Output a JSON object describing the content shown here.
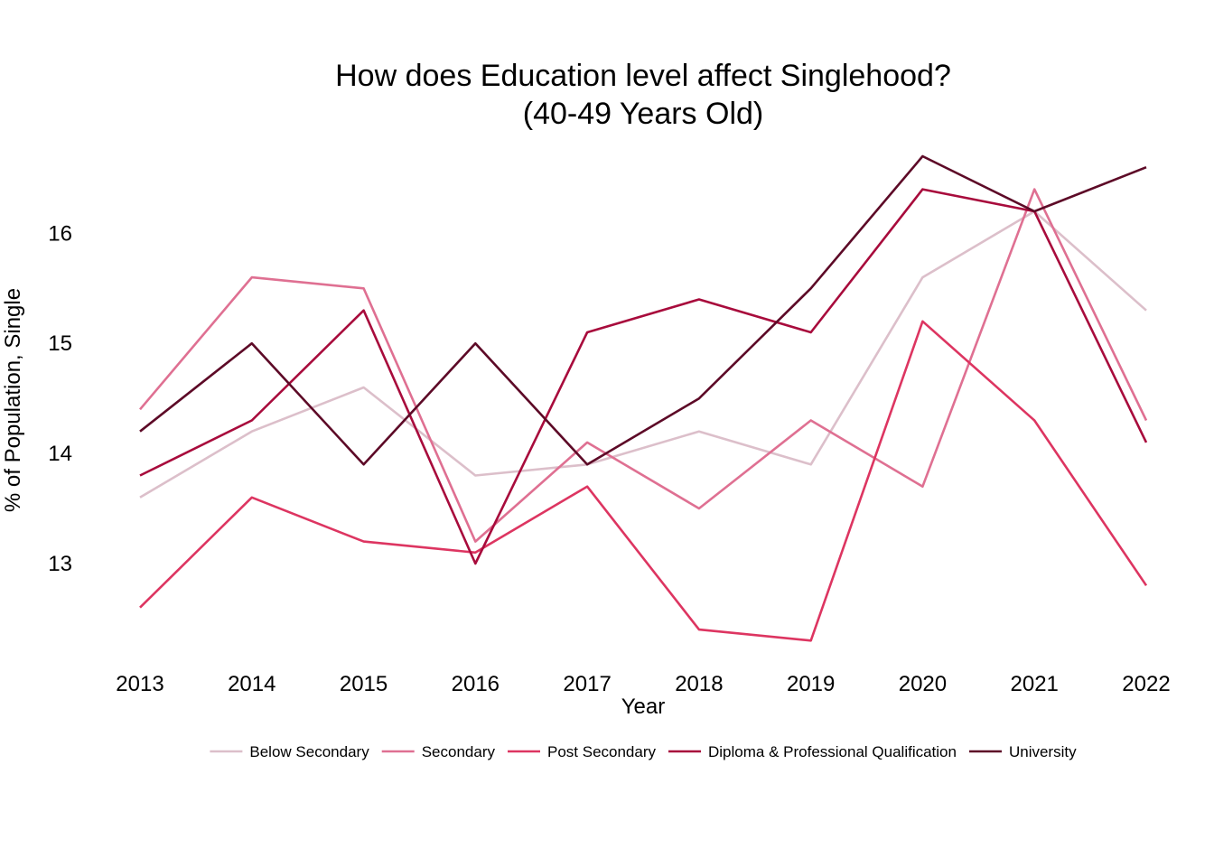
{
  "chart_data": {
    "type": "line",
    "title": [
      "How does Education level affect Singlehood?",
      "(40-49 Years Old)"
    ],
    "xlabel": "Year",
    "ylabel": "% of Population, Single",
    "x": [
      "2013",
      "2014",
      "2015",
      "2016",
      "2017",
      "2018",
      "2019",
      "2020",
      "2021",
      "2022"
    ],
    "yticks": [
      13,
      14,
      15,
      16
    ],
    "ylim": [
      12.13,
      16.93
    ],
    "grid": false,
    "legend_position": "bottom",
    "series": [
      {
        "name": "Below Secondary",
        "color": "#dcbfca",
        "values": [
          13.6,
          14.2,
          14.6,
          13.8,
          13.9,
          14.2,
          13.9,
          15.6,
          16.2,
          15.3
        ]
      },
      {
        "name": "Secondary",
        "color": "#df7092",
        "values": [
          14.4,
          15.6,
          15.5,
          13.2,
          14.1,
          13.5,
          14.3,
          13.7,
          16.4,
          14.3
        ]
      },
      {
        "name": "Post Secondary",
        "color": "#dd3561",
        "values": [
          12.6,
          13.6,
          13.2,
          13.1,
          13.7,
          12.4,
          12.3,
          15.2,
          14.3,
          12.8
        ]
      },
      {
        "name": "Diploma & Professional Qualification",
        "color": "#a80b3c",
        "values": [
          13.8,
          14.3,
          15.3,
          13.0,
          15.1,
          15.4,
          15.1,
          16.4,
          16.2,
          14.1
        ]
      },
      {
        "name": "University",
        "color": "#5d0a27",
        "values": [
          14.2,
          15.0,
          13.9,
          15.0,
          13.9,
          14.5,
          15.5,
          16.7,
          16.2,
          16.6
        ]
      }
    ]
  }
}
